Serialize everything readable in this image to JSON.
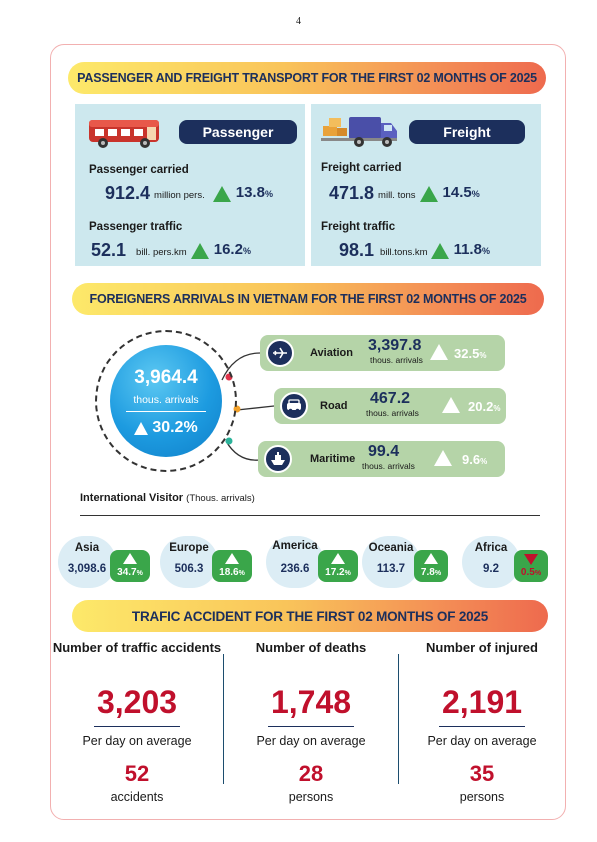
{
  "page_number": "4",
  "section1": {
    "title": "PASSENGER AND FREIGHT TRANSPORT FOR THE FIRST 02 MONTHS OF 2025",
    "passenger": {
      "label": "Passenger",
      "icon": "bus-icon",
      "carried_label": "Passenger carried",
      "carried_value": "912.4",
      "carried_unit": "million pers.",
      "carried_pct": "13.8",
      "traffic_label": "Passenger traffic",
      "traffic_value": "52.1",
      "traffic_unit": "bill. pers.km",
      "traffic_pct": "16.2"
    },
    "freight": {
      "label": "Freight",
      "icon": "truck-icon",
      "carried_label": "Freight carried",
      "carried_value": "471.8",
      "carried_unit": "mill. tons",
      "carried_pct": "14.5",
      "traffic_label": "Freight traffic",
      "traffic_value": "98.1",
      "traffic_unit": "bill.tons.km",
      "traffic_pct": "11.8"
    },
    "pct_symbol": "%"
  },
  "section2": {
    "title": "FOREIGNERS ARRIVALS IN VIETNAM FOR THE FIRST 02 MONTHS OF 2025",
    "total_value": "3,964.4",
    "total_unit": "thous. arrivals",
    "total_pct": "30.2%",
    "modes": [
      {
        "name": "Aviation",
        "icon": "airplane-icon",
        "value": "3,397.8",
        "unit": "thous. arrivals",
        "pct": "32.5"
      },
      {
        "name": "Road",
        "icon": "car-icon",
        "value": "467.2",
        "unit": "thous. arrivals",
        "pct": "20.2"
      },
      {
        "name": "Maritime",
        "icon": "ship-icon",
        "value": "99.4",
        "unit": "thous. arrivals",
        "pct": "9.6"
      }
    ],
    "intl_title": "International Visitor",
    "intl_unit": "(Thous. arrivals)",
    "regions": [
      {
        "name": "Asia",
        "value": "3,098.6",
        "pct": "34.7",
        "direction": "up"
      },
      {
        "name": "Europe",
        "value": "506.3",
        "pct": "18.6",
        "direction": "up"
      },
      {
        "name": "America",
        "value": "236.6",
        "pct": "17.2",
        "direction": "up"
      },
      {
        "name": "Oceania",
        "value": "113.7",
        "pct": "7.8",
        "direction": "up"
      },
      {
        "name": "Africa",
        "value": "9.2",
        "pct": "0.5",
        "direction": "down"
      }
    ],
    "colors": {
      "up": "#3aa64a",
      "down": "#c0102c"
    }
  },
  "section3": {
    "title": "TRAFIC ACCIDENT FOR THE FIRST 02 MONTHS OF 2025",
    "columns": [
      {
        "title": "Number of traffic accidents",
        "value": "3,203",
        "sub": "Per day on average",
        "daily": "52",
        "daily_unit": "accidents"
      },
      {
        "title": "Number of deaths",
        "value": "1,748",
        "sub": "Per day on average",
        "daily": "28",
        "daily_unit": "persons"
      },
      {
        "title": "Number of injured",
        "value": "2,191",
        "sub": "Per day on average",
        "daily": "35",
        "daily_unit": "persons"
      }
    ]
  }
}
